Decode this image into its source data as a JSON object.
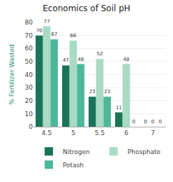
{
  "chart_data": {
    "type": "bar",
    "title": "Economics of Soil pH",
    "ylabel": "% Fertilizer Wasted",
    "categories": [
      "4.5",
      "5",
      "5.5",
      "6",
      "7"
    ],
    "series": [
      {
        "name": "Nitrogen",
        "color": "#1a7358",
        "values": [
          70,
          47,
          23,
          11,
          0
        ]
      },
      {
        "name": "Phosphate",
        "color": "#a8dac4",
        "values": [
          77,
          66,
          52,
          48,
          0
        ]
      },
      {
        "name": "Potash",
        "color": "#4db899",
        "values": [
          67,
          48,
          23,
          0,
          0
        ]
      }
    ],
    "ylim": [
      0,
      80
    ],
    "yticks": [
      0,
      10,
      20,
      30,
      40,
      50,
      60,
      70,
      80
    ],
    "grid": true,
    "legend": "bottom",
    "data_labels": true
  }
}
